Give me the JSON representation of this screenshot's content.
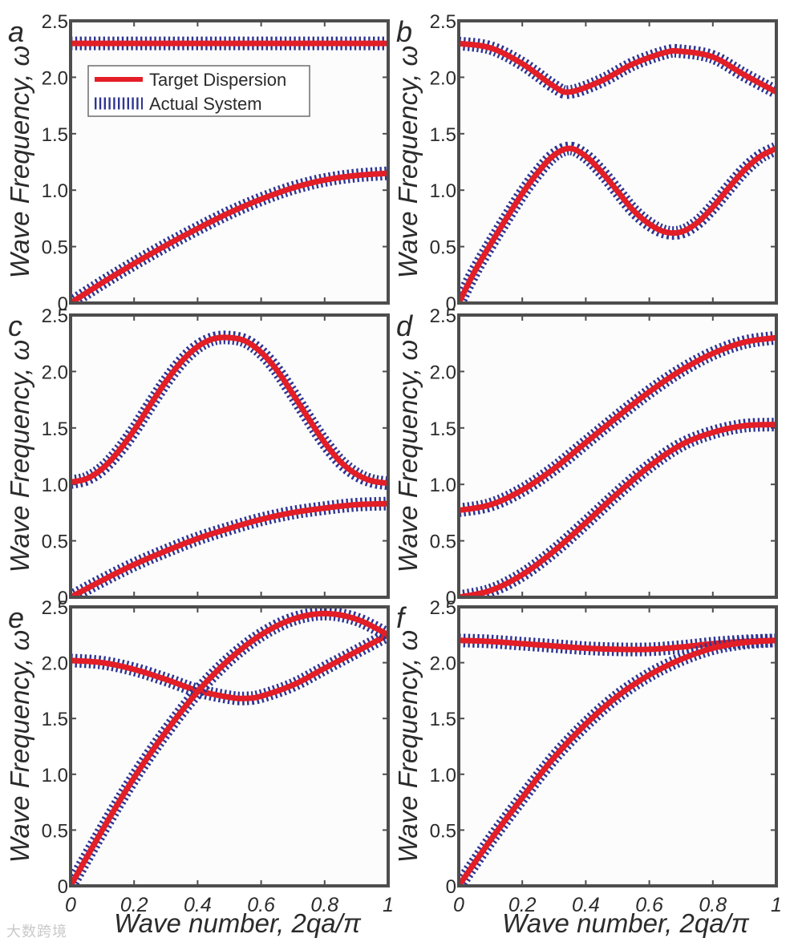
{
  "figure": {
    "axis_label_x": "Wave number, 2qa/π",
    "axis_label_y": "Wave Frequency, ω",
    "colors": {
      "target": "#e31e26",
      "actual": "#2e3592",
      "frame": "#4d4d4d",
      "plot_bg": "#fcfcfc"
    }
  },
  "legend": {
    "target_label": "Target Dispersion",
    "actual_label": "Actual System"
  },
  "watermark": {
    "text": "大数跨境"
  },
  "chart_data": [
    {
      "panel": "a",
      "type": "line",
      "xlim": [
        0,
        1
      ],
      "ylim": [
        0,
        2.5
      ],
      "xticks": [
        0,
        0.2,
        0.4,
        0.6,
        0.8,
        1
      ],
      "yticks": [
        "0",
        "0.5",
        "1.0",
        "1.5",
        "2.0",
        "2.5"
      ],
      "series": [
        {
          "name": "upper branch",
          "x": [
            0,
            0.5,
            1
          ],
          "y": [
            2.3,
            2.3,
            2.3
          ]
        },
        {
          "name": "lower branch",
          "x": [
            0,
            0.1,
            0.2,
            0.3,
            0.4,
            0.5,
            0.6,
            0.7,
            0.8,
            0.9,
            1.0
          ],
          "y": [
            0.0,
            0.18,
            0.35,
            0.51,
            0.66,
            0.8,
            0.92,
            1.02,
            1.09,
            1.13,
            1.15
          ]
        }
      ]
    },
    {
      "panel": "b",
      "type": "line",
      "xlim": [
        0,
        1
      ],
      "ylim": [
        0,
        2.5
      ],
      "xticks": [
        0,
        0.2,
        0.4,
        0.6,
        0.8,
        1
      ],
      "yticks": [
        "0",
        "0.5",
        "1.0",
        "1.5",
        "2.0",
        "2.5"
      ],
      "series": [
        {
          "name": "upper branch",
          "x": [
            0,
            0.1,
            0.2,
            0.3,
            0.35,
            0.45,
            0.55,
            0.65,
            0.7,
            0.8,
            0.9,
            1.0
          ],
          "y": [
            2.3,
            2.26,
            2.12,
            1.92,
            1.87,
            1.97,
            2.12,
            2.22,
            2.23,
            2.18,
            2.02,
            1.87
          ]
        },
        {
          "name": "lower branch",
          "x": [
            0,
            0.05,
            0.1,
            0.15,
            0.2,
            0.25,
            0.3,
            0.35,
            0.4,
            0.45,
            0.5,
            0.55,
            0.6,
            0.65,
            0.7,
            0.75,
            0.8,
            0.85,
            0.9,
            0.95,
            1.0
          ],
          "y": [
            0.0,
            0.28,
            0.52,
            0.75,
            0.97,
            1.16,
            1.31,
            1.37,
            1.3,
            1.16,
            0.99,
            0.82,
            0.7,
            0.63,
            0.63,
            0.71,
            0.85,
            1.02,
            1.18,
            1.3,
            1.37
          ]
        }
      ]
    },
    {
      "panel": "c",
      "type": "line",
      "xlim": [
        0,
        1
      ],
      "ylim": [
        0,
        2.5
      ],
      "xticks": [
        0,
        0.2,
        0.4,
        0.6,
        0.8,
        1
      ],
      "yticks": [
        "0",
        "0.5",
        "1.0",
        "1.5",
        "2.0",
        "2.5"
      ],
      "series": [
        {
          "name": "upper branch",
          "x": [
            0,
            0.05,
            0.1,
            0.15,
            0.2,
            0.25,
            0.3,
            0.35,
            0.4,
            0.45,
            0.5,
            0.55,
            0.6,
            0.65,
            0.7,
            0.75,
            0.8,
            0.85,
            0.9,
            0.95,
            1.0
          ],
          "y": [
            1.02,
            1.05,
            1.14,
            1.29,
            1.48,
            1.7,
            1.91,
            2.09,
            2.22,
            2.29,
            2.3,
            2.27,
            2.17,
            2.01,
            1.8,
            1.58,
            1.37,
            1.2,
            1.09,
            1.03,
            1.01
          ]
        },
        {
          "name": "lower branch",
          "x": [
            0,
            0.1,
            0.2,
            0.3,
            0.4,
            0.5,
            0.6,
            0.7,
            0.8,
            0.9,
            1.0
          ],
          "y": [
            0.0,
            0.15,
            0.29,
            0.41,
            0.52,
            0.61,
            0.69,
            0.75,
            0.79,
            0.82,
            0.83
          ]
        }
      ]
    },
    {
      "panel": "d",
      "type": "line",
      "xlim": [
        0,
        1
      ],
      "ylim": [
        0,
        2.5
      ],
      "xticks": [
        0,
        0.2,
        0.4,
        0.6,
        0.8,
        1
      ],
      "yticks": [
        "0",
        "0.5",
        "1.0",
        "1.5",
        "2.0",
        "2.5"
      ],
      "series": [
        {
          "name": "upper branch",
          "x": [
            0,
            0.1,
            0.2,
            0.3,
            0.4,
            0.5,
            0.6,
            0.7,
            0.8,
            0.9,
            1.0
          ],
          "y": [
            0.77,
            0.82,
            0.95,
            1.14,
            1.37,
            1.6,
            1.82,
            2.01,
            2.16,
            2.26,
            2.3
          ]
        },
        {
          "name": "lower branch",
          "x": [
            0,
            0.1,
            0.2,
            0.3,
            0.4,
            0.5,
            0.6,
            0.7,
            0.8,
            0.9,
            1.0
          ],
          "y": [
            0.0,
            0.06,
            0.2,
            0.41,
            0.66,
            0.92,
            1.16,
            1.35,
            1.46,
            1.52,
            1.53
          ]
        }
      ]
    },
    {
      "panel": "e",
      "type": "line",
      "xlim": [
        0,
        1
      ],
      "ylim": [
        0,
        2.5
      ],
      "xticks": [
        0,
        0.2,
        0.4,
        0.6,
        0.8,
        1
      ],
      "yticks": [
        "0",
        "0.5",
        "1.0",
        "1.5",
        "2.0",
        "2.5"
      ],
      "series": [
        {
          "name": "branch starting at 2.0",
          "x": [
            0,
            0.1,
            0.2,
            0.3,
            0.4,
            0.5,
            0.55,
            0.6,
            0.7,
            0.8,
            0.9,
            1.0
          ],
          "y": [
            2.02,
            2.0,
            1.94,
            1.85,
            1.75,
            1.69,
            1.68,
            1.7,
            1.8,
            1.95,
            2.1,
            2.25
          ]
        },
        {
          "name": "branch starting at 0",
          "x": [
            0,
            0.1,
            0.2,
            0.3,
            0.4,
            0.5,
            0.6,
            0.7,
            0.8,
            0.9,
            1.0
          ],
          "y": [
            0.0,
            0.5,
            0.97,
            1.38,
            1.74,
            2.03,
            2.25,
            2.39,
            2.44,
            2.39,
            2.25
          ]
        }
      ]
    },
    {
      "panel": "f",
      "type": "line",
      "xlim": [
        0,
        1
      ],
      "ylim": [
        0,
        2.5
      ],
      "xticks": [
        0,
        0.2,
        0.4,
        0.6,
        0.8,
        1
      ],
      "yticks": [
        "0",
        "0.5",
        "1.0",
        "1.5",
        "2.0",
        "2.5"
      ],
      "series": [
        {
          "name": "flat branch",
          "x": [
            0,
            0.1,
            0.2,
            0.3,
            0.4,
            0.5,
            0.6,
            0.7,
            0.8,
            0.9,
            1.0
          ],
          "y": [
            2.2,
            2.19,
            2.17,
            2.15,
            2.13,
            2.12,
            2.12,
            2.14,
            2.17,
            2.19,
            2.2
          ]
        },
        {
          "name": "rising branch",
          "x": [
            0,
            0.1,
            0.2,
            0.3,
            0.4,
            0.5,
            0.6,
            0.7,
            0.8,
            0.9,
            1.0
          ],
          "y": [
            0.0,
            0.41,
            0.79,
            1.15,
            1.45,
            1.7,
            1.89,
            2.03,
            2.13,
            2.18,
            2.2
          ]
        }
      ]
    }
  ]
}
